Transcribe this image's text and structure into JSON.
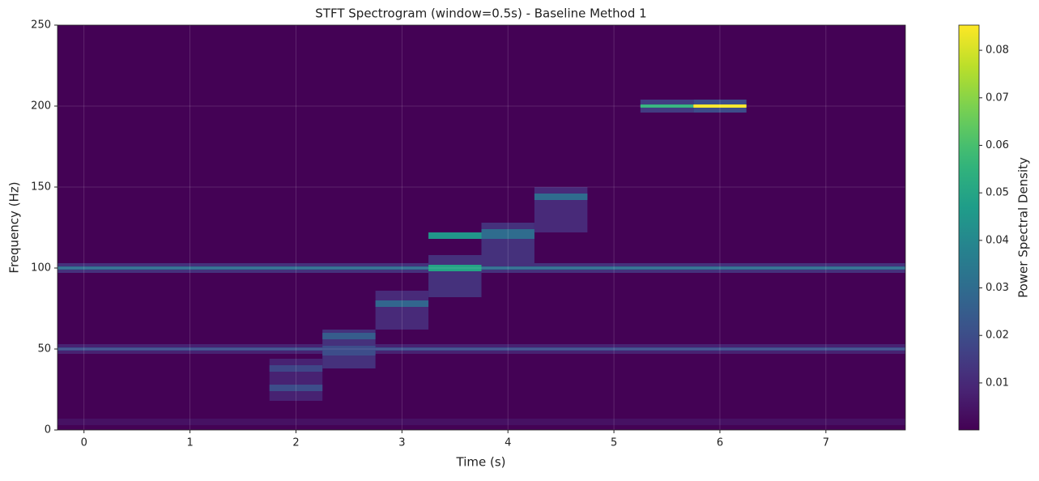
{
  "chart_data": {
    "type": "spectrogram",
    "title": "STFT Spectrogram (window=0.5s) - Baseline Method 1",
    "x_label": "Time (s)",
    "y_label": "Frequency (Hz)",
    "colorbar_label": "Power Spectral Density",
    "xlim": [
      -0.25,
      7.75
    ],
    "xticks": [
      0,
      1,
      2,
      3,
      4,
      5,
      6,
      7
    ],
    "ylim": [
      0,
      250
    ],
    "yticks": [
      0,
      50,
      100,
      150,
      200,
      250
    ],
    "clim": [
      0.0001,
      0.0853
    ],
    "cticks": [
      0.01,
      0.02,
      0.03,
      0.04,
      0.05,
      0.06,
      0.07,
      0.08
    ],
    "colormap": "viridis",
    "grid": true,
    "background_value": 0.0003,
    "cells": [
      {
        "t": [
          -0.25,
          7.75
        ],
        "f": [
          3,
          7
        ],
        "value": 0.004
      },
      {
        "t": [
          -0.25,
          7.75
        ],
        "f": [
          47,
          53
        ],
        "value": 0.008
      },
      {
        "t": [
          -0.25,
          7.75
        ],
        "f": [
          49,
          51
        ],
        "value": 0.02
      },
      {
        "t": [
          -0.25,
          7.75
        ],
        "f": [
          97,
          103
        ],
        "value": 0.012
      },
      {
        "t": [
          -0.25,
          7.75
        ],
        "f": [
          99,
          101
        ],
        "value": 0.03
      },
      {
        "t": [
          1.75,
          2.25
        ],
        "f": [
          18,
          44
        ],
        "value": 0.008
      },
      {
        "t": [
          1.75,
          2.25
        ],
        "f": [
          24,
          28
        ],
        "value": 0.02
      },
      {
        "t": [
          1.75,
          2.25
        ],
        "f": [
          36,
          40
        ],
        "value": 0.018
      },
      {
        "t": [
          2.25,
          2.75
        ],
        "f": [
          38,
          62
        ],
        "value": 0.012
      },
      {
        "t": [
          2.25,
          2.75
        ],
        "f": [
          46,
          52
        ],
        "value": 0.02
      },
      {
        "t": [
          2.25,
          2.75
        ],
        "f": [
          56,
          60
        ],
        "value": 0.025
      },
      {
        "t": [
          2.75,
          3.25
        ],
        "f": [
          62,
          86
        ],
        "value": 0.01
      },
      {
        "t": [
          2.75,
          3.25
        ],
        "f": [
          76,
          80
        ],
        "value": 0.028
      },
      {
        "t": [
          3.25,
          3.75
        ],
        "f": [
          82,
          108
        ],
        "value": 0.012
      },
      {
        "t": [
          3.25,
          3.75
        ],
        "f": [
          98,
          102
        ],
        "value": 0.05
      },
      {
        "t": [
          3.25,
          3.75
        ],
        "f": [
          118,
          122
        ],
        "value": 0.045
      },
      {
        "t": [
          3.75,
          4.25
        ],
        "f": [
          102,
          128
        ],
        "value": 0.012
      },
      {
        "t": [
          3.75,
          4.25
        ],
        "f": [
          118,
          124
        ],
        "value": 0.03
      },
      {
        "t": [
          4.25,
          4.75
        ],
        "f": [
          122,
          150
        ],
        "value": 0.01
      },
      {
        "t": [
          4.25,
          4.75
        ],
        "f": [
          142,
          146
        ],
        "value": 0.03
      },
      {
        "t": [
          5.25,
          5.75
        ],
        "f": [
          196,
          204
        ],
        "value": 0.015
      },
      {
        "t": [
          5.25,
          5.75
        ],
        "f": [
          199,
          201
        ],
        "value": 0.055
      },
      {
        "t": [
          5.75,
          6.25
        ],
        "f": [
          196,
          204
        ],
        "value": 0.02
      },
      {
        "t": [
          5.75,
          6.25
        ],
        "f": [
          199,
          201
        ],
        "value": 0.085
      }
    ]
  }
}
